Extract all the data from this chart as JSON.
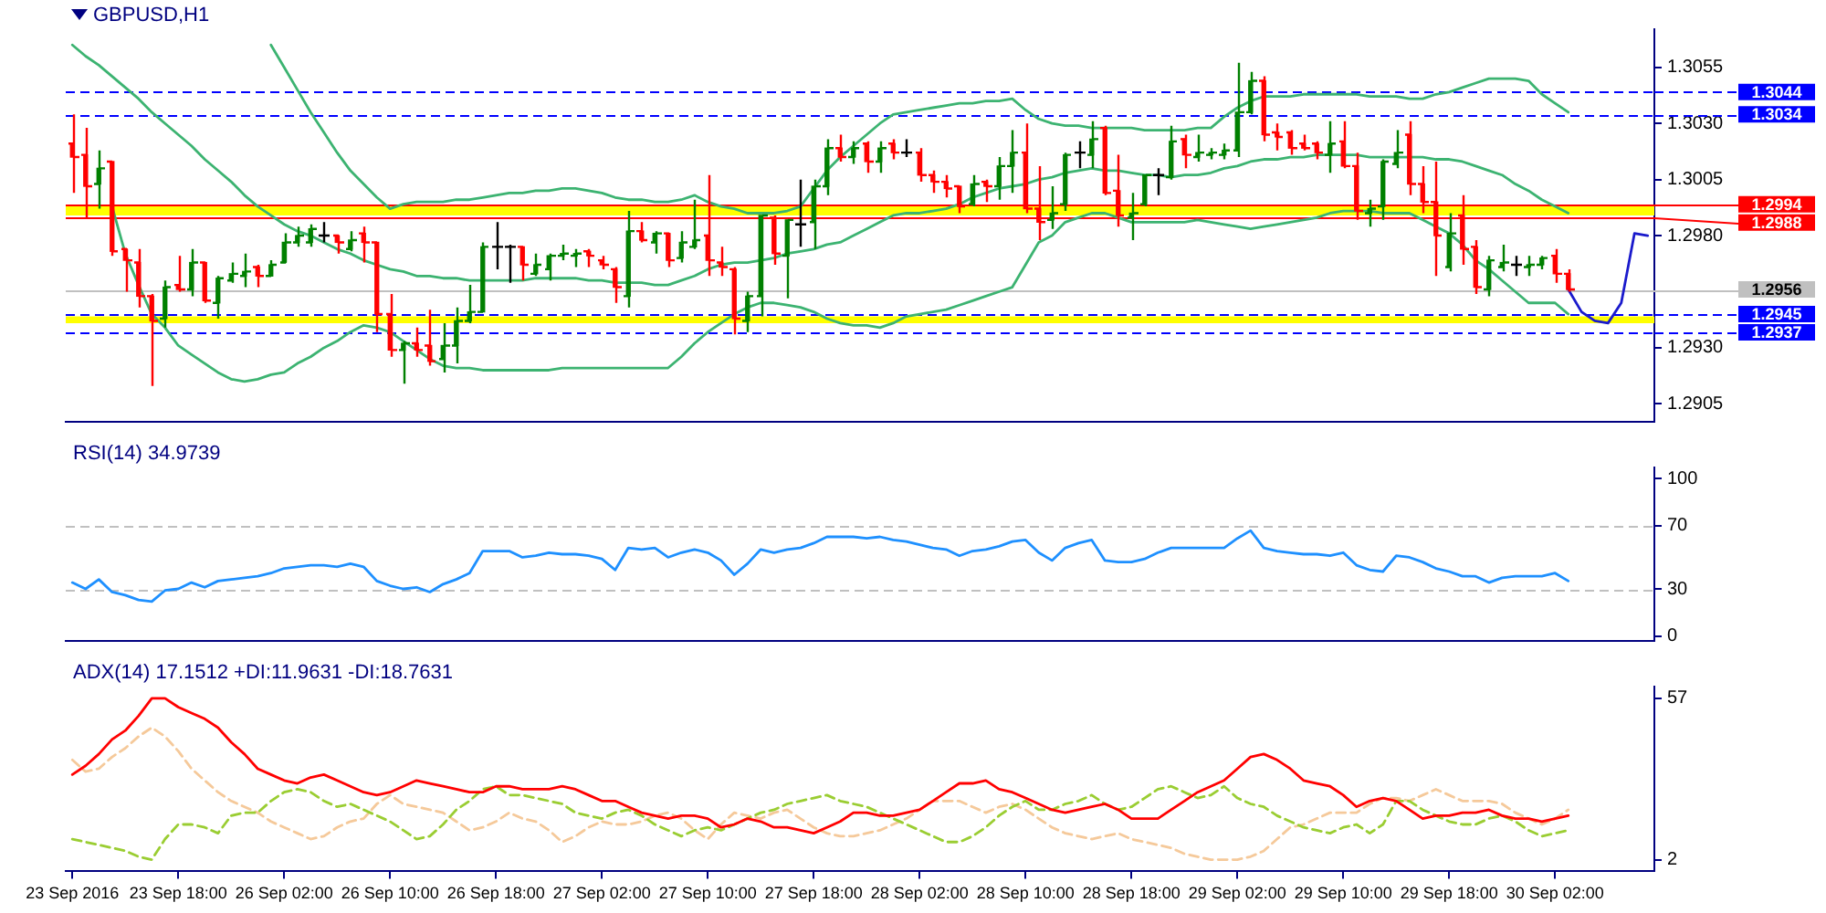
{
  "chart_data": [
    {
      "type": "candlestick",
      "title": "GBPUSD,H1",
      "ohlc": [
        [
          1.3021,
          1.3034,
          1.2999,
          1.3015
        ],
        [
          1.3016,
          1.3028,
          1.2988,
          1.3002
        ],
        [
          1.3003,
          1.3018,
          1.2992,
          1.301
        ],
        [
          1.3013,
          1.3013,
          1.2971,
          1.2973
        ],
        [
          1.2974,
          1.2974,
          1.2955,
          1.2969
        ],
        [
          1.2968,
          1.2974,
          1.2948,
          1.2953
        ],
        [
          1.2953,
          1.2954,
          1.2913,
          1.2942
        ],
        [
          1.2943,
          1.296,
          1.2939,
          1.2957
        ],
        [
          1.2958,
          1.2971,
          1.2955,
          1.2956
        ],
        [
          1.2956,
          1.2974,
          1.2953,
          1.2968
        ],
        [
          1.2968,
          1.2968,
          1.295,
          1.2951
        ],
        [
          1.295,
          1.2962,
          1.2943,
          1.2961
        ],
        [
          1.296,
          1.2968,
          1.2959,
          1.2963
        ],
        [
          1.2962,
          1.2972,
          1.2957,
          1.2964
        ],
        [
          1.2966,
          1.2967,
          1.2957,
          1.2962
        ],
        [
          1.2962,
          1.2969,
          1.2962,
          1.2967
        ],
        [
          1.2968,
          1.2981,
          1.2968,
          1.2977
        ],
        [
          1.2977,
          1.2984,
          1.2975,
          1.298
        ],
        [
          1.2977,
          1.2985,
          1.2975,
          1.2983
        ],
        [
          1.298,
          1.2986,
          1.2977,
          1.298
        ],
        [
          1.298,
          1.298,
          1.2972,
          1.2977
        ],
        [
          1.2974,
          1.2982,
          1.2973,
          1.2978
        ],
        [
          1.2981,
          1.2984,
          1.2968,
          1.2977
        ],
        [
          1.2977,
          1.2977,
          1.2937,
          1.2945
        ],
        [
          1.2945,
          1.2954,
          1.2926,
          1.2929
        ],
        [
          1.2929,
          1.2933,
          1.2914,
          1.2932
        ],
        [
          1.2932,
          1.2939,
          1.2926,
          1.2929
        ],
        [
          1.2931,
          1.2947,
          1.2922,
          1.2924
        ],
        [
          1.2925,
          1.2941,
          1.2919,
          1.2931
        ],
        [
          1.2931,
          1.2948,
          1.2923,
          1.2942
        ],
        [
          1.2942,
          1.2958,
          1.2941,
          1.2946
        ],
        [
          1.2946,
          1.2977,
          1.2946,
          1.2975
        ],
        [
          1.2975,
          1.2986,
          1.2965,
          1.2975
        ],
        [
          1.2975,
          1.2976,
          1.2959,
          1.2975
        ],
        [
          1.2975,
          1.2975,
          1.296,
          1.2967
        ],
        [
          1.2963,
          1.2972,
          1.2962,
          1.2967
        ],
        [
          1.2965,
          1.2972,
          1.296,
          1.2971
        ],
        [
          1.2971,
          1.2976,
          1.2969,
          1.2972
        ],
        [
          1.2971,
          1.2974,
          1.2966,
          1.2972
        ],
        [
          1.2973,
          1.2974,
          1.2966,
          1.2971
        ],
        [
          1.2969,
          1.2971,
          1.2965,
          1.2967
        ],
        [
          1.2965,
          1.2966,
          1.295,
          1.2957
        ],
        [
          1.2953,
          1.2991,
          1.2948,
          1.2982
        ],
        [
          1.2982,
          1.2986,
          1.2977,
          1.2978
        ],
        [
          1.2977,
          1.2982,
          1.2972,
          1.2981
        ],
        [
          1.2981,
          1.2981,
          1.2966,
          1.2969
        ],
        [
          1.297,
          1.2982,
          1.2968,
          1.2977
        ],
        [
          1.2975,
          1.2996,
          1.2974,
          1.2978
        ],
        [
          1.298,
          1.3007,
          1.2962,
          1.2969
        ],
        [
          1.2968,
          1.2975,
          1.2962,
          1.2966
        ],
        [
          1.2965,
          1.2966,
          1.2936,
          1.2943
        ],
        [
          1.2942,
          1.2955,
          1.2937,
          1.2953
        ],
        [
          1.2953,
          1.2989,
          1.2944,
          1.2989
        ],
        [
          1.2988,
          1.2989,
          1.2967,
          1.2972
        ],
        [
          1.2971,
          1.2987,
          1.2952,
          1.2987
        ],
        [
          1.2985,
          1.3005,
          1.2975,
          1.2985
        ],
        [
          1.2986,
          1.3005,
          1.2974,
          1.3002
        ],
        [
          1.3002,
          1.3023,
          1.2998,
          1.3019
        ],
        [
          1.3019,
          1.3025,
          1.3013,
          1.3015
        ],
        [
          1.3015,
          1.3022,
          1.3012,
          1.3019
        ],
        [
          1.3021,
          1.3022,
          1.3008,
          1.3013
        ],
        [
          1.3013,
          1.3022,
          1.3008,
          1.3019
        ],
        [
          1.3021,
          1.3023,
          1.3014,
          1.3017
        ],
        [
          1.3017,
          1.3023,
          1.3015,
          1.3017
        ],
        [
          1.3017,
          1.3019,
          1.3004,
          1.3007
        ],
        [
          1.3007,
          1.3009,
          1.2999,
          1.3004
        ],
        [
          1.3004,
          1.3007,
          1.2997,
          1.3001
        ],
        [
          1.3002,
          1.3002,
          1.299,
          1.2993
        ],
        [
          1.2994,
          1.3007,
          1.2993,
          1.3003
        ],
        [
          1.3004,
          1.3005,
          1.2995,
          1.3002
        ],
        [
          1.3002,
          1.3015,
          1.2996,
          1.3011
        ],
        [
          1.3011,
          1.3027,
          1.2999,
          1.3017
        ],
        [
          1.3017,
          1.303,
          1.299,
          1.2992
        ],
        [
          1.2992,
          1.3011,
          1.2978,
          1.2986
        ],
        [
          1.2987,
          1.3002,
          1.2983,
          1.299
        ],
        [
          1.2994,
          1.3017,
          1.2991,
          1.3016
        ],
        [
          1.3017,
          1.3022,
          1.301,
          1.3017
        ],
        [
          1.3016,
          1.3031,
          1.301,
          1.3023
        ],
        [
          1.3028,
          1.3029,
          1.2998,
          1.2999
        ],
        [
          1.3,
          1.3016,
          1.2984,
          1.2989
        ],
        [
          1.2988,
          1.2999,
          1.2978,
          1.299
        ],
        [
          1.2994,
          1.3007,
          1.2993,
          1.3007
        ],
        [
          1.3007,
          1.301,
          1.2998,
          1.3007
        ],
        [
          1.3006,
          1.3029,
          1.3005,
          1.3022
        ],
        [
          1.3023,
          1.3025,
          1.301,
          1.3016
        ],
        [
          1.3015,
          1.3025,
          1.3013,
          1.3017
        ],
        [
          1.3016,
          1.3019,
          1.3014,
          1.3017
        ],
        [
          1.3016,
          1.3021,
          1.3014,
          1.3018
        ],
        [
          1.3018,
          1.3057,
          1.3015,
          1.3035
        ],
        [
          1.3035,
          1.3053,
          1.3034,
          1.3049
        ],
        [
          1.3049,
          1.3051,
          1.3022,
          1.3025
        ],
        [
          1.3026,
          1.303,
          1.3018,
          1.3024
        ],
        [
          1.3026,
          1.3027,
          1.3016,
          1.3019
        ],
        [
          1.3021,
          1.3025,
          1.3018,
          1.3019
        ],
        [
          1.3021,
          1.3022,
          1.3014,
          1.3017
        ],
        [
          1.3016,
          1.3031,
          1.3008,
          1.3021
        ],
        [
          1.3022,
          1.3031,
          1.301,
          1.3011
        ],
        [
          1.3011,
          1.3017,
          1.2987,
          1.2991
        ],
        [
          1.299,
          1.2996,
          1.2984,
          1.2992
        ],
        [
          1.2993,
          1.3014,
          1.2987,
          1.3013
        ],
        [
          1.3012,
          1.3027,
          1.301,
          1.3017
        ],
        [
          1.3025,
          1.3031,
          1.2998,
          1.3003
        ],
        [
          1.3003,
          1.3011,
          1.299,
          1.2995
        ],
        [
          1.2995,
          1.3013,
          1.2962,
          1.298
        ],
        [
          1.2966,
          1.299,
          1.2964,
          1.2981
        ],
        [
          1.2989,
          1.2998,
          1.2967,
          1.2974
        ],
        [
          1.2975,
          1.2978,
          1.2954,
          1.2957
        ],
        [
          1.2956,
          1.2971,
          1.2953,
          1.2969
        ],
        [
          1.2966,
          1.2976,
          1.2964,
          1.2968
        ],
        [
          1.2967,
          1.2971,
          1.2962,
          1.2967
        ],
        [
          1.2966,
          1.2971,
          1.2962,
          1.2967
        ],
        [
          1.2967,
          1.2971,
          1.2965,
          1.297
        ],
        [
          1.2971,
          1.2974,
          1.2959,
          1.2963
        ],
        [
          1.2963,
          1.2965,
          1.2955,
          1.2956
        ],
        null,
        null,
        null,
        null,
        null,
        null
      ],
      "colors": [
        "#ff0000",
        "#ff0000",
        "#008000",
        "#ff0000",
        "#ff0000",
        "#ff0000",
        "#ff0000",
        "#008000",
        "#ff0000",
        "#008000",
        "#ff0000",
        "#008000",
        "#008000",
        "#008000",
        "#ff0000",
        "#008000",
        "#008000",
        "#008000",
        "#008000",
        "#000000",
        "#ff0000",
        "#008000",
        "#ff0000",
        "#ff0000",
        "#ff0000",
        "#008000",
        "#ff0000",
        "#ff0000",
        "#008000",
        "#008000",
        "#008000",
        "#008000",
        "#000000",
        "#000000",
        "#ff0000",
        "#008000",
        "#008000",
        "#008000",
        "#008000",
        "#ff0000",
        "#ff0000",
        "#ff0000",
        "#008000",
        "#ff0000",
        "#008000",
        "#ff0000",
        "#008000",
        "#008000",
        "#ff0000",
        "#ff0000",
        "#ff0000",
        "#008000",
        "#008000",
        "#ff0000",
        "#008000",
        "#000000",
        "#008000",
        "#008000",
        "#ff0000",
        "#008000",
        "#ff0000",
        "#008000",
        "#ff0000",
        "#000000",
        "#ff0000",
        "#ff0000",
        "#ff0000",
        "#ff0000",
        "#008000",
        "#ff0000",
        "#008000",
        "#008000",
        "#ff0000",
        "#ff0000",
        "#008000",
        "#008000",
        "#000000",
        "#008000",
        "#ff0000",
        "#ff0000",
        "#008000",
        "#008000",
        "#000000",
        "#008000",
        "#ff0000",
        "#008000",
        "#008000",
        "#008000",
        "#008000",
        "#008000",
        "#ff0000",
        "#ff0000",
        "#ff0000",
        "#ff0000",
        "#ff0000",
        "#008000",
        "#ff0000",
        "#ff0000",
        "#008000",
        "#008000",
        "#008000",
        "#ff0000",
        "#ff0000",
        "#ff0000",
        "#008000",
        "#ff0000",
        "#ff0000",
        "#008000",
        "#008000",
        "#000000",
        "#008000",
        "#008000",
        "#ff0000",
        "#ff0000",
        null,
        null,
        null,
        null,
        null,
        null
      ],
      "series": [
        {
          "type": "line",
          "color": "#3cb371",
          "values": [
            null,
            null,
            null,
            null,
            null,
            null,
            null,
            null,
            null,
            null,
            null,
            null,
            null,
            null,
            null,
            1.3065,
            1.3055,
            1.3045,
            1.3035,
            1.3026,
            1.3017,
            1.3009,
            1.3003,
            1.2997,
            1.2992,
            1.2994,
            1.2995,
            1.2995,
            1.2995,
            1.2996,
            1.2996,
            1.2997,
            1.2998,
            1.2999,
            1.2999,
            1.3,
            1.3,
            1.3001,
            1.3001,
            1.3,
            1.2999,
            1.2997,
            1.2996,
            1.2996,
            1.2995,
            1.2995,
            1.2996,
            1.2998,
            1.2995,
            1.2993,
            1.2992,
            1.299,
            1.299,
            1.299,
            1.2991,
            1.2993,
            1.3001,
            1.3009,
            1.3015,
            1.302,
            1.3025,
            1.303,
            1.3034,
            1.3035,
            1.3036,
            1.3037,
            1.3038,
            1.3039,
            1.3039,
            1.304,
            1.304,
            1.3041,
            1.3036,
            1.3032,
            1.303,
            1.3029,
            1.3029,
            1.3028,
            1.3028,
            1.3028,
            1.3028,
            1.3027,
            1.3027,
            1.3027,
            1.3027,
            1.3028,
            1.3028,
            1.3033,
            1.3037,
            1.304,
            1.3042,
            1.3042,
            1.3042,
            1.3043,
            1.3043,
            1.3043,
            1.3043,
            1.3043,
            1.3042,
            1.3042,
            1.3042,
            1.3041,
            1.3041,
            1.3043,
            1.3044,
            1.3046,
            1.3048,
            1.305,
            1.305,
            1.305,
            1.3049,
            1.3043,
            1.3039,
            1.3035,
            null,
            null,
            null,
            null,
            null,
            null
          ]
        },
        {
          "type": "line",
          "color": "#3cb371",
          "values": [
            1.3065,
            1.306,
            1.3056,
            1.3051,
            1.3046,
            1.3041,
            1.3035,
            1.303,
            1.3025,
            1.302,
            1.3014,
            1.3009,
            1.3004,
            1.2998,
            1.2993,
            1.2989,
            1.2985,
            1.2982,
            1.298,
            1.2977,
            1.2974,
            1.2972,
            1.2969,
            1.2967,
            1.2965,
            1.2964,
            1.2962,
            1.2962,
            1.2961,
            1.2961,
            1.296,
            1.296,
            1.296,
            1.296,
            1.296,
            1.2961,
            1.2961,
            1.2961,
            1.2961,
            1.296,
            1.296,
            1.2959,
            1.2959,
            1.2959,
            1.2958,
            1.2958,
            1.296,
            1.2962,
            1.2965,
            1.2967,
            1.2968,
            1.2968,
            1.2969,
            1.297,
            1.2972,
            1.2973,
            1.2974,
            1.2976,
            1.2977,
            1.298,
            1.2983,
            1.2986,
            1.2989,
            1.299,
            1.299,
            1.2991,
            1.2992,
            1.2994,
            1.2997,
            1.2999,
            1.3001,
            1.3002,
            1.3003,
            1.3005,
            1.3006,
            1.3008,
            1.3009,
            1.301,
            1.3009,
            1.3009,
            1.3008,
            1.3007,
            1.3007,
            1.3006,
            1.3007,
            1.3007,
            1.3008,
            1.301,
            1.3011,
            1.3013,
            1.3014,
            1.3014,
            1.3015,
            1.3015,
            1.3016,
            1.3016,
            1.3016,
            1.3016,
            1.3015,
            1.3015,
            1.3015,
            1.3015,
            1.3015,
            1.3014,
            1.3014,
            1.3013,
            1.3011,
            1.3009,
            1.3007,
            1.3003,
            1.3,
            1.2996,
            1.2993,
            1.299,
            null,
            null,
            null,
            null,
            null,
            null
          ]
        },
        {
          "type": "line",
          "color": "#3cb371",
          "values": [
            null,
            null,
            null,
            1.2993,
            1.2972,
            1.2958,
            1.2945,
            1.2939,
            1.2931,
            1.2927,
            1.2923,
            1.2919,
            1.2916,
            1.2915,
            1.2916,
            1.2918,
            1.2919,
            1.2923,
            1.2926,
            1.293,
            1.2933,
            1.2937,
            1.294,
            1.2939,
            1.2937,
            1.2933,
            1.2929,
            1.2925,
            1.2922,
            1.2921,
            1.2921,
            1.292,
            1.292,
            1.292,
            1.292,
            1.292,
            1.292,
            1.2921,
            1.2921,
            1.2921,
            1.2921,
            1.2921,
            1.2921,
            1.2921,
            1.2921,
            1.2921,
            1.2926,
            1.2932,
            1.2937,
            1.2941,
            1.2945,
            1.2948,
            1.295,
            1.295,
            1.2949,
            1.2948,
            1.2946,
            1.2943,
            1.2941,
            1.294,
            1.294,
            1.2939,
            1.2941,
            1.2944,
            1.2945,
            1.2946,
            1.2947,
            1.2949,
            1.2951,
            1.2953,
            1.2955,
            1.2957,
            1.2967,
            1.2977,
            1.298,
            1.2986,
            1.2988,
            1.299,
            1.299,
            1.2988,
            1.2986,
            1.2986,
            1.2986,
            1.2986,
            1.2986,
            1.2987,
            1.2986,
            1.2985,
            1.2984,
            1.2983,
            1.2984,
            1.2985,
            1.2986,
            1.2987,
            1.2988,
            1.299,
            1.2991,
            1.2991,
            1.2991,
            1.299,
            1.299,
            1.299,
            1.2987,
            1.2984,
            1.2981,
            1.2976,
            1.2969,
            1.2965,
            1.296,
            1.2955,
            1.295,
            1.295,
            1.295,
            1.2945,
            null,
            null,
            null,
            null,
            null,
            null
          ]
        },
        {
          "type": "line",
          "color": "#1a1acc",
          "values": [
            null,
            null,
            null,
            null,
            null,
            null,
            null,
            null,
            null,
            null,
            null,
            null,
            null,
            null,
            null,
            null,
            null,
            null,
            null,
            null,
            null,
            null,
            null,
            null,
            null,
            null,
            null,
            null,
            null,
            null,
            null,
            null,
            null,
            null,
            null,
            null,
            null,
            null,
            null,
            null,
            null,
            null,
            null,
            null,
            null,
            null,
            null,
            null,
            null,
            null,
            null,
            null,
            null,
            null,
            null,
            null,
            null,
            null,
            null,
            null,
            null,
            null,
            null,
            null,
            null,
            null,
            null,
            null,
            null,
            null,
            null,
            null,
            null,
            null,
            null,
            null,
            null,
            null,
            null,
            null,
            null,
            null,
            null,
            null,
            null,
            null,
            null,
            null,
            null,
            null,
            null,
            null,
            null,
            null,
            null,
            null,
            null,
            null,
            null,
            null,
            null,
            null,
            null,
            null,
            null,
            null,
            null,
            null,
            null,
            null,
            null,
            null,
            null,
            1.2956,
            1.2946,
            1.2942,
            1.2941,
            1.295,
            1.2981,
            1.298
          ]
        }
      ],
      "ylim": [
        1.2897,
        1.3072
      ],
      "yticks": [
        1.3055,
        {
          "value": 1.303,
          "label": "1.3030"
        },
        1.3005,
        {
          "value": 1.298,
          "label": "1.2980"
        },
        {
          "value": 1.2955,
          "label": null
        },
        {
          "value": 1.293,
          "label": "1.2930"
        },
        1.2905
      ],
      "tick_labels": "y",
      "bands": [
        {
          "axis": "y",
          "from": 1.2989,
          "to": 1.2993,
          "color": "#ffff00"
        },
        {
          "axis": "y",
          "from": 1.2941,
          "to": 1.2944,
          "color": "#ffff00"
        }
      ],
      "ref_lines": [
        {
          "axis": "y",
          "value": 1.3044,
          "label": "1.3044",
          "color": "#0000ff",
          "line_style": "dashed"
        },
        {
          "axis": "y",
          "value": 1.3034,
          "label": "1.3034",
          "color": "#0000ff",
          "line_style": "dashed"
        },
        {
          "axis": "y",
          "value": 1.2994,
          "label": "1.2994",
          "color": "#ff0000",
          "line_style": "solid"
        },
        {
          "axis": "y",
          "value": 1.2988,
          "label": "1.2988",
          "color": "#ff0000",
          "line_style": "solid"
        },
        {
          "axis": "y",
          "value": 1.2956,
          "label": "1.2956",
          "color": "#c0c0c0",
          "line_style": "solid"
        },
        {
          "axis": "y",
          "value": 1.2945,
          "label": "1.2945",
          "color": "#0000ff",
          "line_style": "dashed"
        },
        {
          "axis": "y",
          "value": 1.2937,
          "label": "1.2937",
          "color": "#0000ff",
          "line_style": "dashed"
        }
      ]
    },
    {
      "type": "line",
      "title": "RSI(14) 34.9739",
      "series": [
        {
          "color": "#1e90ff",
          "values": [
            34,
            30,
            36,
            28,
            26,
            23,
            22,
            29,
            30,
            34,
            31,
            35,
            36,
            37,
            38,
            40,
            43,
            44,
            45,
            45,
            44,
            46,
            44,
            35,
            32,
            30,
            31,
            28,
            33,
            36,
            40,
            54,
            54,
            54,
            50,
            51,
            53,
            52,
            52,
            51,
            49,
            42,
            56,
            55,
            56,
            50,
            53,
            55,
            53,
            48,
            39,
            46,
            55,
            53,
            55,
            56,
            59,
            63,
            63,
            63,
            62,
            63,
            61,
            60,
            58,
            56,
            55,
            51,
            54,
            55,
            57,
            60,
            61,
            53,
            48,
            56,
            59,
            61,
            48,
            47,
            47,
            49,
            53,
            56,
            56,
            56,
            56,
            56,
            62,
            67,
            56,
            54,
            53,
            52,
            52,
            51,
            53,
            45,
            42,
            41,
            51,
            50,
            47,
            43,
            41,
            38,
            38,
            34,
            37,
            38,
            38,
            38,
            40,
            35,
            null,
            null,
            null,
            null,
            null,
            null
          ]
        }
      ],
      "ylim": [
        -3,
        107
      ],
      "yticks": [
        100,
        70,
        30,
        0
      ],
      "tick_labels": "y",
      "ref_lines": [
        {
          "axis": "y",
          "value": 70,
          "color": "#c0c0c0",
          "line_style": "dashed"
        },
        {
          "axis": "y",
          "value": 30,
          "color": "#c0c0c0",
          "line_style": "dashed"
        }
      ]
    },
    {
      "type": "line",
      "title": "ADX(14) 17.1512 +DI:11.9631 -DI:18.7631",
      "categories": [
        "23 Sep 2016",
        null,
        null,
        null,
        null,
        null,
        null,
        null,
        "23 Sep 18:00",
        null,
        null,
        null,
        null,
        null,
        null,
        null,
        "26 Sep 02:00",
        null,
        null,
        null,
        null,
        null,
        null,
        null,
        "26 Sep 10:00",
        null,
        null,
        null,
        null,
        null,
        null,
        null,
        "26 Sep 18:00",
        null,
        null,
        null,
        null,
        null,
        null,
        null,
        "27 Sep 02:00",
        null,
        null,
        null,
        null,
        null,
        null,
        null,
        "27 Sep 10:00",
        null,
        null,
        null,
        null,
        null,
        null,
        null,
        "27 Sep 18:00",
        null,
        null,
        null,
        null,
        null,
        null,
        null,
        "28 Sep 02:00",
        null,
        null,
        null,
        null,
        null,
        null,
        null,
        "28 Sep 10:00",
        null,
        null,
        null,
        null,
        null,
        null,
        null,
        "28 Sep 18:00",
        null,
        null,
        null,
        null,
        null,
        null,
        null,
        "29 Sep 02:00",
        null,
        null,
        null,
        null,
        null,
        null,
        null,
        "29 Sep 10:00",
        null,
        null,
        null,
        null,
        null,
        null,
        null,
        "29 Sep 18:00",
        null,
        null,
        null,
        null,
        null,
        null,
        null,
        "30 Sep 02:00",
        null,
        null,
        null,
        null,
        null,
        null,
        null
      ],
      "series": [
        {
          "color": "#ff0000",
          "line_style": "solid",
          "values": [
            31,
            34,
            38,
            43,
            46,
            51,
            57,
            57,
            54,
            52,
            50,
            47,
            42,
            38,
            33,
            31,
            29,
            28,
            30,
            31,
            29,
            27,
            25,
            24,
            25,
            27,
            29,
            28,
            27,
            26,
            25,
            25,
            27,
            27,
            26,
            26,
            26,
            27,
            26,
            24,
            22,
            22,
            20,
            18,
            17,
            16,
            17,
            17,
            16,
            13,
            14,
            16,
            15,
            13,
            13,
            12,
            11,
            13,
            15,
            18,
            18,
            17,
            17,
            18,
            19,
            22,
            25,
            28,
            28,
            29,
            26,
            25,
            23,
            21,
            19,
            18,
            19,
            20,
            21,
            19,
            16,
            16,
            16,
            19,
            22,
            25,
            27,
            29,
            33,
            37,
            38,
            36,
            33,
            29,
            28,
            27,
            24,
            20,
            22,
            23,
            22,
            19,
            16,
            17,
            17,
            18,
            18,
            19,
            17,
            16,
            16,
            15,
            16,
            17,
            null,
            null,
            null,
            null,
            null,
            null
          ]
        },
        {
          "color": "#9acd32",
          "line_style": "dashed",
          "values": [
            9,
            8,
            7,
            6,
            5,
            3,
            2,
            9,
            14,
            14,
            13,
            11,
            17,
            18,
            18,
            22,
            25,
            26,
            25,
            22,
            20,
            21,
            19,
            17,
            15,
            12,
            9,
            10,
            14,
            19,
            22,
            26,
            27,
            24,
            24,
            23,
            22,
            21,
            18,
            17,
            16,
            18,
            19,
            17,
            14,
            12,
            10,
            12,
            13,
            12,
            14,
            16,
            18,
            19,
            21,
            22,
            23,
            24,
            22,
            21,
            20,
            18,
            16,
            14,
            12,
            10,
            8,
            8,
            10,
            13,
            17,
            20,
            22,
            19,
            19,
            21,
            22,
            24,
            21,
            19,
            20,
            23,
            26,
            27,
            25,
            23,
            24,
            27,
            23,
            21,
            20,
            17,
            15,
            13,
            12,
            11,
            13,
            14,
            11,
            14,
            22,
            22,
            19,
            17,
            15,
            14,
            14,
            16,
            17,
            15,
            12,
            10,
            11,
            12,
            null,
            null,
            null,
            null,
            null,
            null
          ]
        },
        {
          "color": "#f5c99a",
          "line_style": "dashed",
          "values": [
            36,
            32,
            33,
            37,
            40,
            44,
            47,
            44,
            39,
            33,
            29,
            25,
            22,
            20,
            18,
            15,
            13,
            11,
            9,
            10,
            13,
            15,
            16,
            21,
            24,
            21,
            20,
            19,
            18,
            15,
            12,
            13,
            15,
            18,
            16,
            15,
            12,
            8,
            10,
            13,
            15,
            14,
            14,
            15,
            17,
            18,
            16,
            12,
            9,
            14,
            18,
            17,
            16,
            18,
            19,
            16,
            13,
            11,
            10,
            10,
            11,
            12,
            14,
            16,
            19,
            22,
            22,
            22,
            20,
            18,
            20,
            21,
            19,
            16,
            13,
            11,
            10,
            9,
            10,
            11,
            9,
            8,
            7,
            6,
            4,
            3,
            2,
            2,
            2,
            3,
            5,
            9,
            13,
            14,
            16,
            18,
            18,
            18,
            21,
            23,
            23,
            22,
            24,
            26,
            24,
            22,
            22,
            22,
            21,
            18,
            16,
            14,
            16,
            19,
            null,
            null,
            null,
            null,
            null,
            null
          ]
        }
      ],
      "ylim": [
        -2,
        61
      ],
      "yticks": [
        57,
        2
      ]
    }
  ]
}
